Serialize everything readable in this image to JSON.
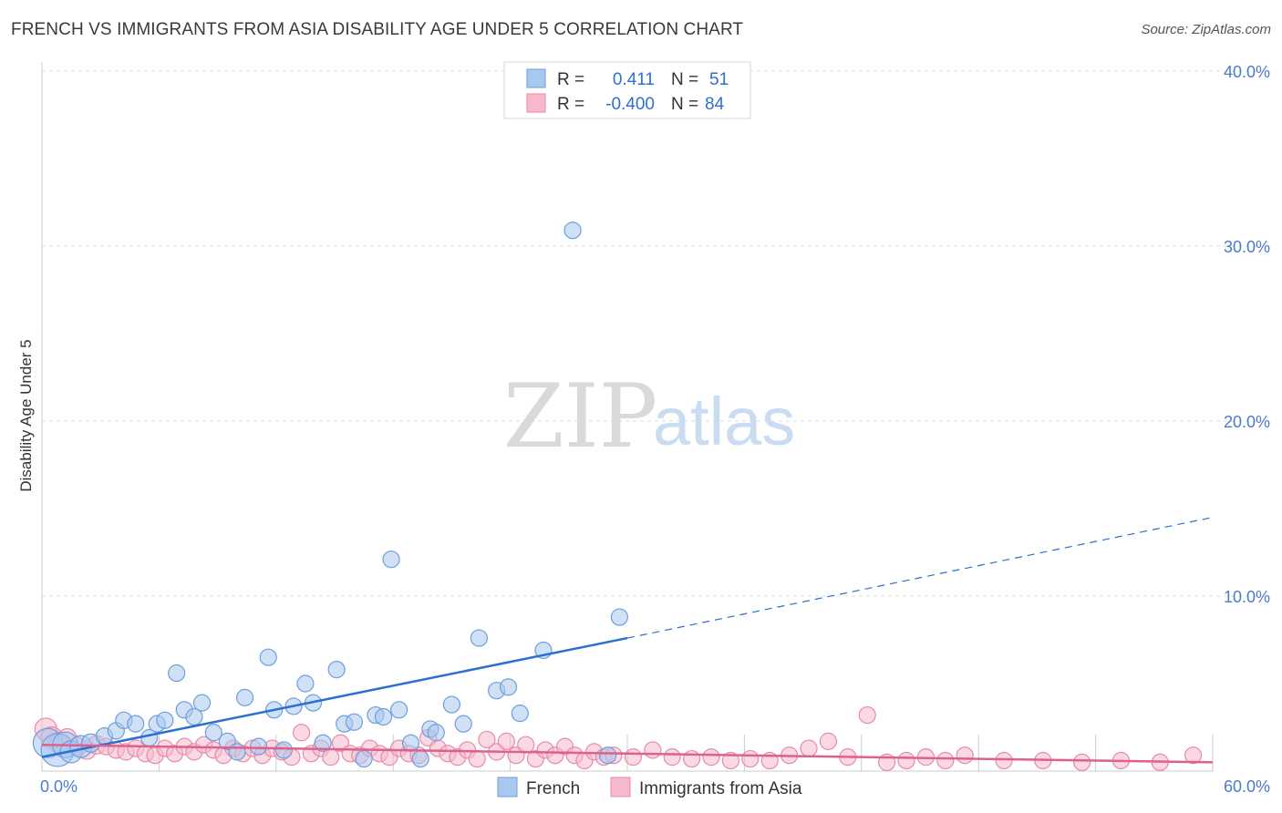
{
  "title": "FRENCH VS IMMIGRANTS FROM ASIA DISABILITY AGE UNDER 5 CORRELATION CHART",
  "source": "Source: ZipAtlas.com",
  "watermark": {
    "zip": "ZIP",
    "atlas": "atlas"
  },
  "legend": {
    "french": {
      "r_label": "R =",
      "r_value": "0.411",
      "n_label": "N =",
      "n_value": "51"
    },
    "asia": {
      "r_label": "R =",
      "r_value": "-0.400",
      "n_label": "N =",
      "n_value": "84"
    }
  },
  "colors": {
    "french_fill": "#a9c8ef",
    "french_stroke": "#6d9ede",
    "french_line": "#2a6fd3",
    "asia_fill": "#f6b9cc",
    "asia_stroke": "#e88aa8",
    "asia_line": "#e0608c",
    "tick_text": "#4a7cc9",
    "grid": "#dddddd"
  },
  "chart_data": {
    "type": "scatter",
    "title": "FRENCH VS IMMIGRANTS FROM ASIA DISABILITY AGE UNDER 5 CORRELATION CHART",
    "xlabel": "",
    "ylabel": "Disability Age Under 5",
    "xlim": [
      0,
      60
    ],
    "ylim": [
      0,
      40
    ],
    "x_tick_labels": [
      "0.0%",
      "60.0%"
    ],
    "y_ticks": [
      10,
      20,
      30,
      40
    ],
    "y_tick_labels": [
      "10.0%",
      "20.0%",
      "30.0%",
      "40.0%"
    ],
    "grid": true,
    "series": [
      {
        "name": "French",
        "r": 0.411,
        "n": 51,
        "trend": {
          "x_start": 0,
          "y_start": 0.8,
          "x_solid_end": 30,
          "y_solid_end": 7.6,
          "x_end": 60,
          "y_end": 14.5
        },
        "points": [
          [
            0.3,
            1.6,
            16
          ],
          [
            0.8,
            1.2,
            18
          ],
          [
            1.2,
            1.5,
            14
          ],
          [
            1.5,
            1.1,
            12
          ],
          [
            2.0,
            1.4,
            12
          ],
          [
            2.5,
            1.6,
            10
          ],
          [
            3.2,
            2.0,
            9
          ],
          [
            3.8,
            2.3,
            9
          ],
          [
            4.2,
            2.9,
            9
          ],
          [
            4.8,
            2.7,
            9
          ],
          [
            5.5,
            1.9,
            9
          ],
          [
            5.9,
            2.7,
            9
          ],
          [
            6.3,
            2.9,
            9
          ],
          [
            6.9,
            5.6,
            9
          ],
          [
            7.3,
            3.5,
            9
          ],
          [
            7.8,
            3.1,
            9
          ],
          [
            8.2,
            3.9,
            9
          ],
          [
            8.8,
            2.2,
            9
          ],
          [
            9.5,
            1.7,
            9
          ],
          [
            10.0,
            1.1,
            9
          ],
          [
            10.4,
            4.2,
            9
          ],
          [
            11.1,
            1.4,
            9
          ],
          [
            11.6,
            6.5,
            9
          ],
          [
            11.9,
            3.5,
            9
          ],
          [
            12.4,
            1.2,
            9
          ],
          [
            12.9,
            3.7,
            9
          ],
          [
            13.5,
            5.0,
            9
          ],
          [
            13.9,
            3.9,
            9
          ],
          [
            14.4,
            1.6,
            9
          ],
          [
            15.1,
            5.8,
            9
          ],
          [
            15.5,
            2.7,
            9
          ],
          [
            16.0,
            2.8,
            9
          ],
          [
            16.5,
            0.7,
            9
          ],
          [
            17.1,
            3.2,
            9
          ],
          [
            17.5,
            3.1,
            9
          ],
          [
            17.9,
            12.1,
            9
          ],
          [
            18.3,
            3.5,
            9
          ],
          [
            18.9,
            1.6,
            9
          ],
          [
            19.4,
            0.7,
            9
          ],
          [
            19.9,
            2.4,
            9
          ],
          [
            20.2,
            2.2,
            9
          ],
          [
            21.0,
            3.8,
            9
          ],
          [
            21.6,
            2.7,
            9
          ],
          [
            22.4,
            7.6,
            9
          ],
          [
            23.3,
            4.6,
            9
          ],
          [
            23.9,
            4.8,
            9
          ],
          [
            24.5,
            3.3,
            9
          ],
          [
            25.7,
            6.9,
            9
          ],
          [
            27.2,
            30.9,
            9
          ],
          [
            29.0,
            0.9,
            9
          ],
          [
            29.6,
            8.8,
            9
          ]
        ]
      },
      {
        "name": "Immigrants from Asia",
        "r": -0.4,
        "n": 84,
        "trend": {
          "x_start": 0,
          "y_start": 1.5,
          "x_end": 60,
          "y_end": 0.5
        },
        "points": [
          [
            0.2,
            2.4,
            12
          ],
          [
            0.5,
            1.9,
            12
          ],
          [
            0.9,
            1.6,
            12
          ],
          [
            1.3,
            1.9,
            10
          ],
          [
            1.8,
            1.4,
            10
          ],
          [
            2.3,
            1.2,
            10
          ],
          [
            2.8,
            1.5,
            10
          ],
          [
            3.3,
            1.4,
            9
          ],
          [
            3.8,
            1.2,
            9
          ],
          [
            4.3,
            1.1,
            9
          ],
          [
            4.8,
            1.3,
            9
          ],
          [
            5.3,
            1.0,
            9
          ],
          [
            5.8,
            0.9,
            9
          ],
          [
            6.3,
            1.3,
            9
          ],
          [
            6.8,
            1.0,
            9
          ],
          [
            7.3,
            1.4,
            9
          ],
          [
            7.8,
            1.1,
            9
          ],
          [
            8.3,
            1.5,
            9
          ],
          [
            8.8,
            1.2,
            9
          ],
          [
            9.3,
            0.9,
            9
          ],
          [
            9.8,
            1.3,
            9
          ],
          [
            10.3,
            1.0,
            9
          ],
          [
            10.8,
            1.3,
            9
          ],
          [
            11.3,
            0.9,
            9
          ],
          [
            11.8,
            1.3,
            9
          ],
          [
            12.3,
            1.1,
            9
          ],
          [
            12.8,
            0.8,
            9
          ],
          [
            13.3,
            2.2,
            9
          ],
          [
            13.8,
            1.0,
            9
          ],
          [
            14.3,
            1.3,
            9
          ],
          [
            14.8,
            0.8,
            9
          ],
          [
            15.3,
            1.6,
            9
          ],
          [
            15.8,
            1.0,
            9
          ],
          [
            16.3,
            0.9,
            9
          ],
          [
            16.8,
            1.3,
            9
          ],
          [
            17.3,
            1.0,
            9
          ],
          [
            17.8,
            0.8,
            9
          ],
          [
            18.3,
            1.3,
            9
          ],
          [
            18.8,
            1.0,
            9
          ],
          [
            19.3,
            0.9,
            9
          ],
          [
            19.8,
            1.9,
            9
          ],
          [
            20.3,
            1.3,
            9
          ],
          [
            20.8,
            1.0,
            9
          ],
          [
            21.3,
            0.8,
            9
          ],
          [
            21.8,
            1.2,
            9
          ],
          [
            22.3,
            0.7,
            9
          ],
          [
            22.8,
            1.8,
            9
          ],
          [
            23.3,
            1.1,
            9
          ],
          [
            23.8,
            1.7,
            9
          ],
          [
            24.3,
            0.9,
            9
          ],
          [
            24.8,
            1.5,
            9
          ],
          [
            25.3,
            0.7,
            9
          ],
          [
            25.8,
            1.2,
            9
          ],
          [
            26.3,
            0.9,
            9
          ],
          [
            26.8,
            1.4,
            9
          ],
          [
            27.3,
            0.9,
            9
          ],
          [
            27.8,
            0.6,
            9
          ],
          [
            28.3,
            1.1,
            9
          ],
          [
            28.8,
            0.8,
            9
          ],
          [
            29.3,
            0.9,
            9
          ],
          [
            30.3,
            0.8,
            9
          ],
          [
            31.3,
            1.2,
            9
          ],
          [
            32.3,
            0.8,
            9
          ],
          [
            33.3,
            0.7,
            9
          ],
          [
            34.3,
            0.8,
            9
          ],
          [
            35.3,
            0.6,
            9
          ],
          [
            36.3,
            0.7,
            9
          ],
          [
            37.3,
            0.6,
            9
          ],
          [
            38.3,
            0.9,
            9
          ],
          [
            39.3,
            1.3,
            9
          ],
          [
            40.3,
            1.7,
            9
          ],
          [
            41.3,
            0.8,
            9
          ],
          [
            42.3,
            3.2,
            9
          ],
          [
            43.3,
            0.5,
            9
          ],
          [
            44.3,
            0.6,
            9
          ],
          [
            45.3,
            0.8,
            9
          ],
          [
            46.3,
            0.6,
            9
          ],
          [
            47.3,
            0.9,
            9
          ],
          [
            49.3,
            0.6,
            9
          ],
          [
            51.3,
            0.6,
            9
          ],
          [
            53.3,
            0.5,
            9
          ],
          [
            55.3,
            0.6,
            9
          ],
          [
            57.3,
            0.5,
            9
          ],
          [
            59.0,
            0.9,
            9
          ]
        ]
      }
    ]
  },
  "bottom_legend": {
    "french": "French",
    "asia": "Immigrants from Asia"
  }
}
